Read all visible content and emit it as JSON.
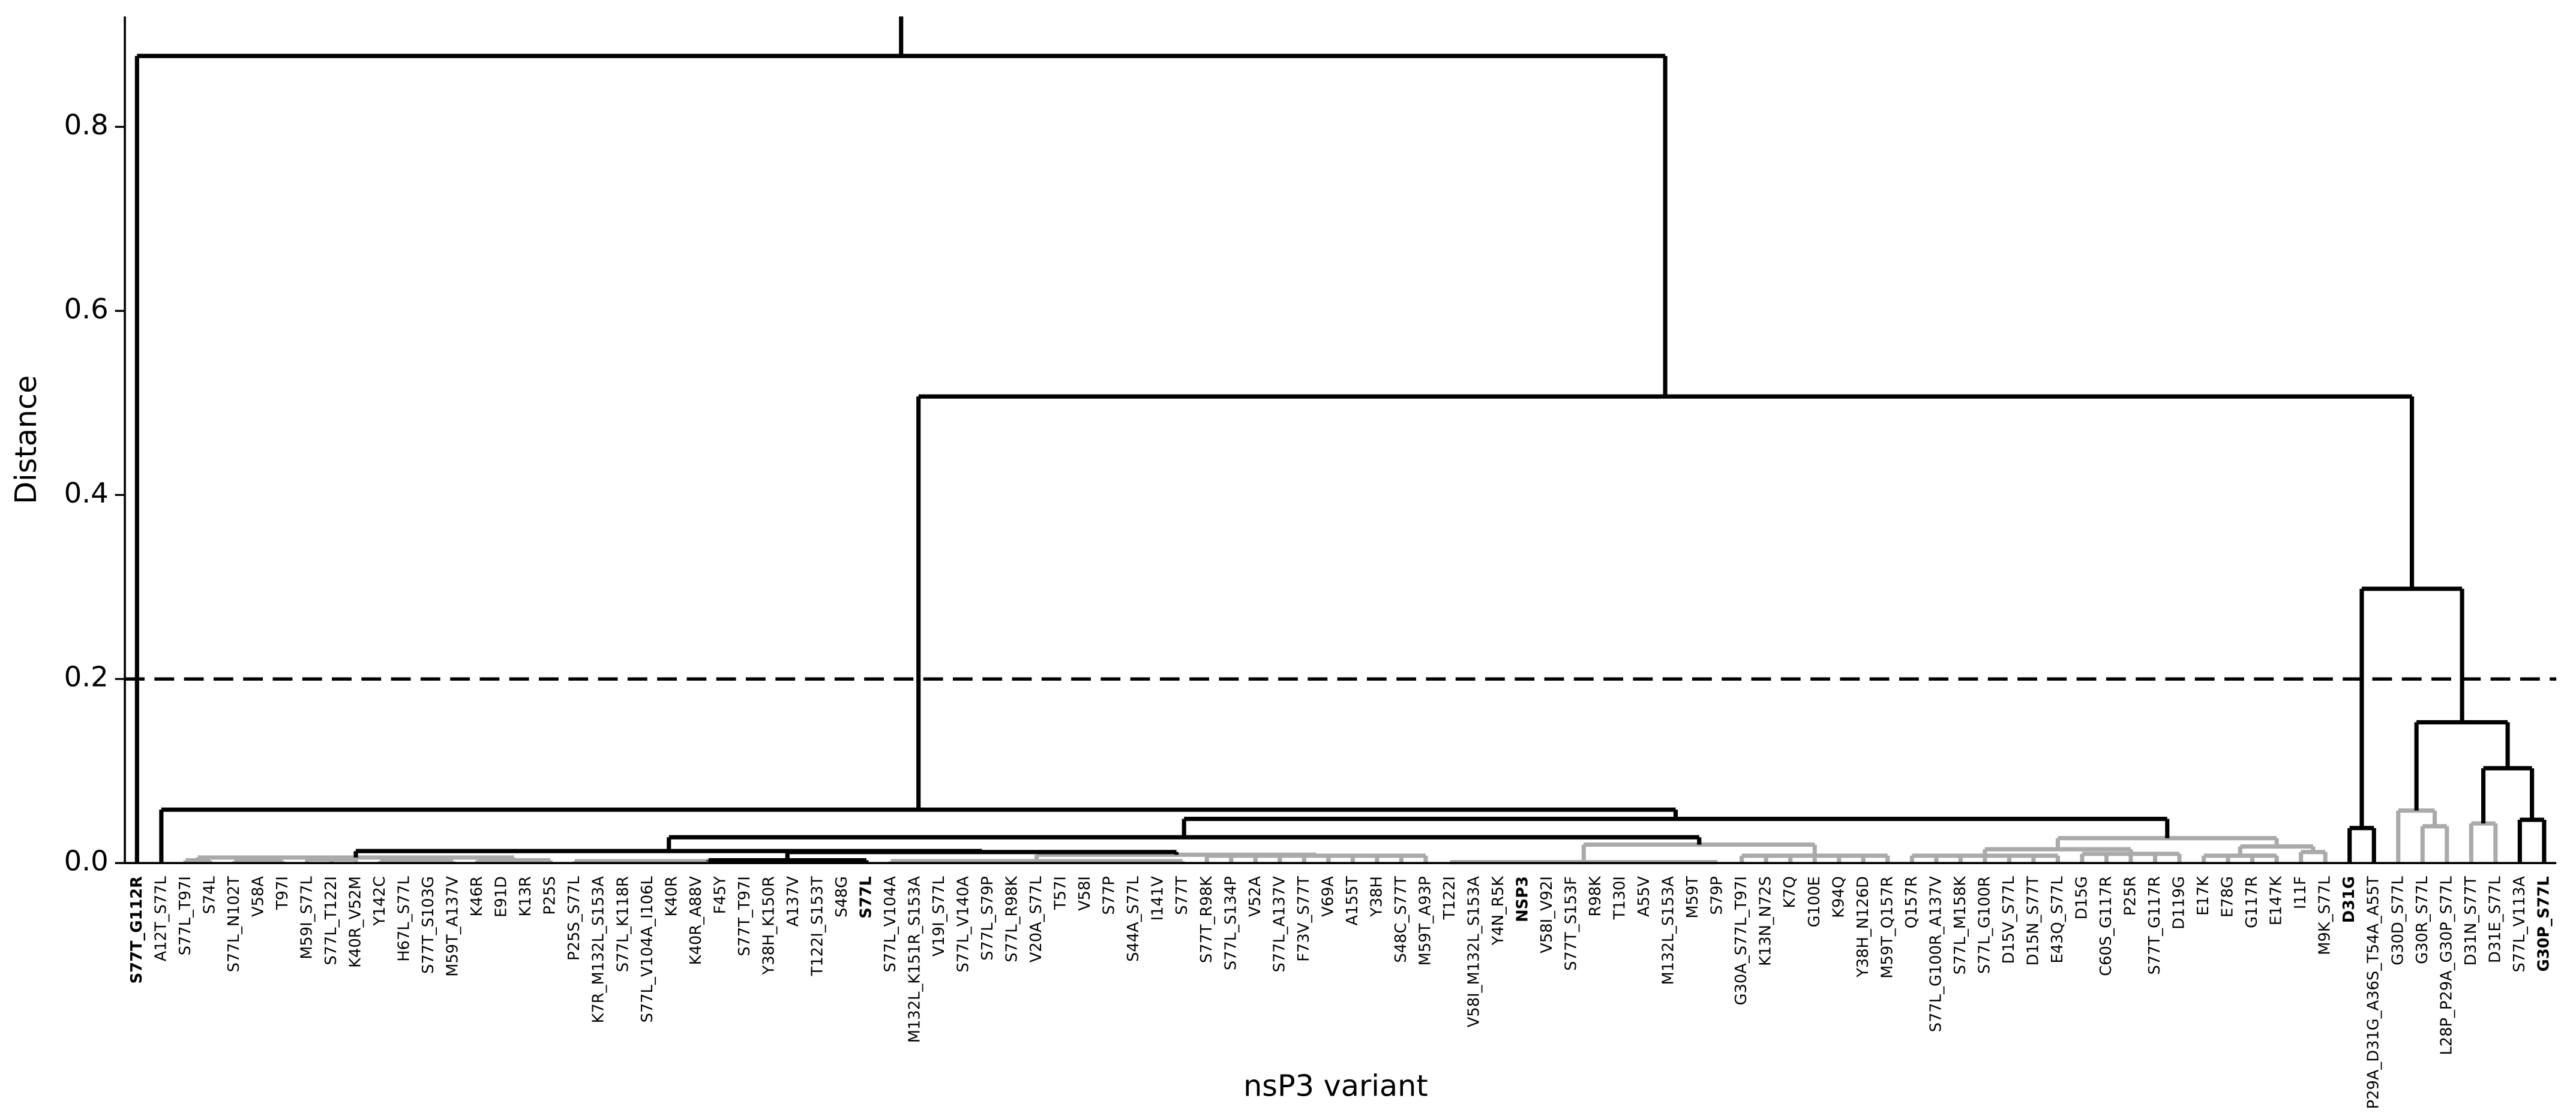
{
  "chart_data": {
    "type": "dendrogram",
    "xlabel": "nsP3 variant",
    "ylabel": "Distance",
    "ylim": [
      0,
      0.92
    ],
    "yticks": [
      {
        "value": 0,
        "label": "0.0"
      },
      0.2,
      0.4,
      0.6,
      0.8
    ],
    "threshold": 0.2,
    "tree": {
      "height": 0.877,
      "color": "#000000",
      "children": [
        {
          "label": "S77T_G112R",
          "bold": true
        },
        {
          "height": 0.507,
          "color": "#000000",
          "children": [
            {
              "height": 0.058,
              "color": "#000000",
              "children": [
                "A12T_S77L",
                {
                  "height": 0.048,
                  "color": "#000000",
                  "children": [
                    {
                      "height": 0.028,
                      "color": "#000000",
                      "children": [
                        {
                          "height": 0.013,
                          "color": "#000000",
                          "children": [
                            {
                              "height": 0.006,
                              "color": "#aaaaaa",
                              "children": [
                                {
                                  "height": 0.003,
                                  "color": "#aaaaaa",
                                  "children": [
                                    "S77L_T97I",
                                    "S74L"
                                  ]
                                },
                                {
                                  "height": 0.002,
                                  "color": "#aaaaaa",
                                  "children": [
                                    "S77L_N102T",
                                    "V58A",
                                    "T97I"
                                  ]
                                },
                                {
                                  "height": 0.004,
                                  "color": "#aaaaaa",
                                  "children": [
                                    "M59I_S77L",
                                    "S77L_T122I",
                                    "K40R_V52M"
                                  ]
                                },
                                {
                                  "height": 0.002,
                                  "color": "#aaaaaa",
                                  "children": [
                                    "Y142C",
                                    "H67L_S77L",
                                    "S77T_S103G",
                                    "M59T_A137V"
                                  ]
                                },
                                {
                                  "height": 0.003,
                                  "color": "#aaaaaa",
                                  "children": [
                                    "K46R",
                                    "E91D",
                                    "K13R",
                                    "P25S"
                                  ]
                                }
                              ]
                            },
                            {
                              "height": 0.012,
                              "color": "#000000",
                              "children": [
                                {
                                  "height": 0.003,
                                  "color": "#000000",
                                  "children": [
                                    {
                                      "height": 0.002,
                                      "color": "#aaaaaa",
                                      "children": [
                                        "P25S_S77L",
                                        "K7R_M132L_S153A",
                                        "S77L_K118R",
                                        "S77L_V104A_I106L",
                                        "K40R",
                                        "K40R_A88V",
                                        "F45Y",
                                        "S77T_T97I",
                                        "Y38H_K150R",
                                        "A137V",
                                        "T122I_S153T",
                                        "S48G"
                                      ]
                                    },
                                    {
                                      "label": "S77L",
                                      "bold": true
                                    }
                                  ]
                                },
                                {
                                  "height": 0.009,
                                  "color": "#aaaaaa",
                                  "children": [
                                    {
                                      "height": 0.002,
                                      "color": "#aaaaaa",
                                      "children": [
                                        "S77L_V104A",
                                        "M132L_K151R_S153A",
                                        "V19I_S77L",
                                        "S77L_V140A",
                                        "S77L_S79P",
                                        "S77L_R98K",
                                        "V20A_S77L",
                                        "T57I",
                                        "V58I",
                                        "S77P",
                                        "S44A_S77L",
                                        "I141V",
                                        "S77T"
                                      ]
                                    },
                                    {
                                      "height": 0.008,
                                      "color": "#aaaaaa",
                                      "children": [
                                        "S77T_R98K",
                                        "S77L_S134P",
                                        "V52A",
                                        "S77L_A137V",
                                        "F73V_S77T",
                                        "V69A",
                                        "A155T",
                                        "Y38H",
                                        "S48C_S77T",
                                        "M59T_A93P"
                                      ]
                                    }
                                  ]
                                }
                              ]
                            }
                          ]
                        },
                        {
                          "height": 0.02,
                          "color": "#aaaaaa",
                          "children": [
                            {
                              "height": 0.001,
                              "color": "#aaaaaa",
                              "children": [
                                "T122I",
                                "V58I_M132L_S153A",
                                "Y4N_R5K",
                                {
                                  "label": "NSP3",
                                  "bold": true,
                                  "color": "#1a8c1a"
                                },
                                "V58I_V92I",
                                "S77T_S153F",
                                "R98K",
                                "T130I",
                                "A55V",
                                "M132L_S153A",
                                "M59T",
                                "S79P"
                              ]
                            },
                            {
                              "height": 0.008,
                              "color": "#aaaaaa",
                              "children": [
                                "G30A_S77L_T97I",
                                "K13N_N72S",
                                "K7Q",
                                "G100E",
                                "K94Q",
                                "Y38H_N126D",
                                "M59T_Q157R"
                              ]
                            }
                          ]
                        }
                      ]
                    },
                    {
                      "height": 0.027,
                      "color": "#aaaaaa",
                      "children": [
                        {
                          "height": 0.015,
                          "color": "#aaaaaa",
                          "children": [
                            {
                              "height": 0.008,
                              "color": "#aaaaaa",
                              "children": [
                                "Q157R",
                                "S77L_G100R_A137V",
                                "S77L_M158K",
                                "S77L_G100R",
                                "D15V_S77L",
                                "D15N_S77T",
                                "E43Q_S77L"
                              ]
                            },
                            {
                              "height": 0.01,
                              "color": "#aaaaaa",
                              "children": [
                                "D15G",
                                "C60S_G117R",
                                "P25R",
                                "S77T_G117R",
                                "D119G"
                              ]
                            }
                          ]
                        },
                        {
                          "height": 0.018,
                          "color": "#aaaaaa",
                          "children": [
                            {
                              "height": 0.008,
                              "color": "#aaaaaa",
                              "children": [
                                "E17K",
                                "E78G",
                                "G117R",
                                "E147K"
                              ]
                            },
                            {
                              "height": 0.012,
                              "color": "#aaaaaa",
                              "children": [
                                "I11F",
                                "M9K_S77L"
                              ]
                            }
                          ]
                        }
                      ]
                    }
                  ]
                }
              ]
            },
            {
              "height": 0.298,
              "color": "#000000",
              "children": [
                {
                  "height": 0.038,
                  "color": "#000000",
                  "children": [
                    {
                      "label": "D31G",
                      "bold": true
                    },
                    "P29A_D31G_A36S_T54A_A55T"
                  ]
                },
                {
                  "height": 0.153,
                  "color": "#000000",
                  "children": [
                    {
                      "height": 0.057,
                      "color": "#aaaaaa",
                      "children": [
                        "G30D_S77L",
                        {
                          "height": 0.04,
                          "color": "#aaaaaa",
                          "children": [
                            "G30R_S77L",
                            "L28P_P29A_G30P_S77L"
                          ]
                        }
                      ]
                    },
                    {
                      "height": 0.103,
                      "color": "#000000",
                      "children": [
                        {
                          "height": 0.043,
                          "color": "#aaaaaa",
                          "children": [
                            "D31N_S77T",
                            "D31E_S77L"
                          ]
                        },
                        {
                          "height": 0.047,
                          "color": "#000000",
                          "children": [
                            "S77L_V113A",
                            {
                              "label": "G30P_S77L",
                              "bold": true
                            }
                          ]
                        }
                      ]
                    }
                  ]
                }
              ]
            }
          ]
        }
      ]
    }
  }
}
